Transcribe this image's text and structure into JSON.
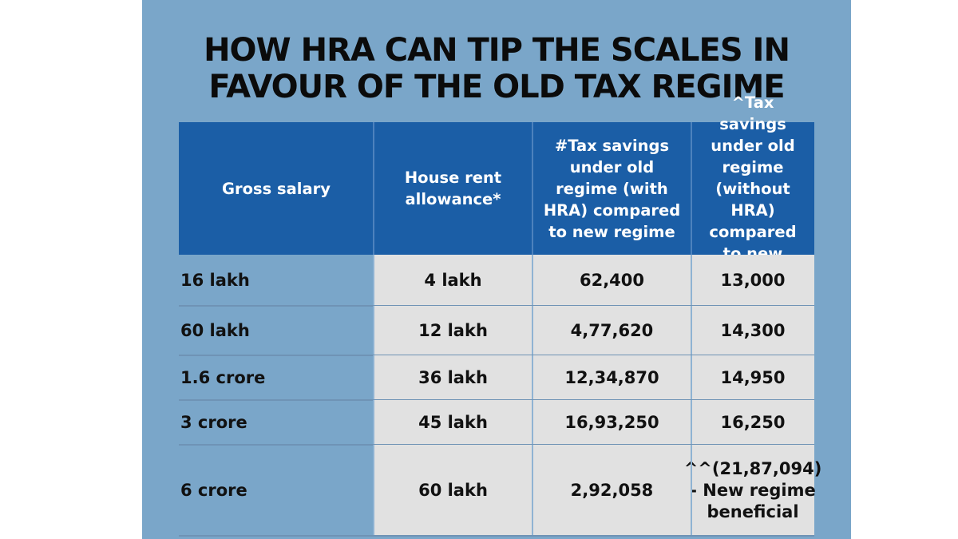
{
  "title_lines": [
    "HOW HRA CAN TIP THE SCALES IN",
    "FAVOUR OF THE OLD TAX REGIME"
  ],
  "chart_data": {
    "type": "table",
    "title": "HOW HRA CAN TIP THE SCALES IN FAVOUR OF THE OLD TAX REGIME",
    "columns": [
      "Gross salary",
      "House rent allowance*",
      "#Tax savings under old regime (with HRA) compared to new regime",
      "^Tax savings under old regime (without HRA) compared to new regime"
    ],
    "rows": [
      [
        "16 lakh",
        "4 lakh",
        "62,400",
        "13,000"
      ],
      [
        "60 lakh",
        "12 lakh",
        "4,77,620",
        "14,300"
      ],
      [
        "1.6 crore",
        "36 lakh",
        "12,34,870",
        "14,950"
      ],
      [
        "3 crore",
        "45 lakh",
        "16,93,250",
        "16,250"
      ],
      [
        "6 crore",
        "60 lakh",
        "2,92,058",
        "^^(21,87,094) - New regime beneficial"
      ]
    ]
  },
  "colors": {
    "background_panel": "#7aa6c9",
    "header_fill": "#1b5ea6",
    "cell_fill": "#e1e1e1",
    "text": "#111111",
    "header_text": "#ffffff"
  }
}
